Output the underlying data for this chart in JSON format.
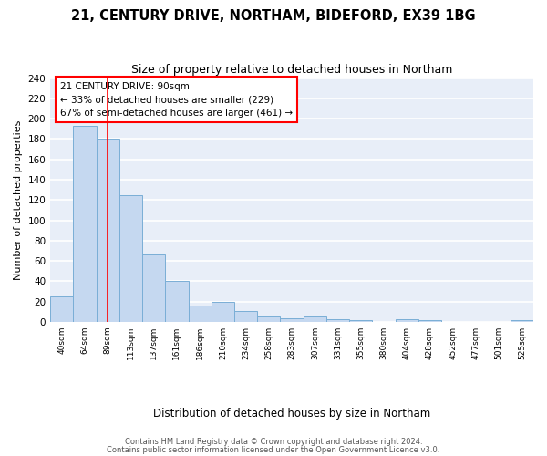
{
  "title": "21, CENTURY DRIVE, NORTHAM, BIDEFORD, EX39 1BG",
  "subtitle": "Size of property relative to detached houses in Northam",
  "xlabel": "Distribution of detached houses by size in Northam",
  "ylabel": "Number of detached properties",
  "bar_color": "#c5d8f0",
  "bar_edge_color": "#7aaed6",
  "background_color": "#e8eef8",
  "categories": [
    "40sqm",
    "64sqm",
    "89sqm",
    "113sqm",
    "137sqm",
    "161sqm",
    "186sqm",
    "210sqm",
    "234sqm",
    "258sqm",
    "283sqm",
    "307sqm",
    "331sqm",
    "355sqm",
    "380sqm",
    "404sqm",
    "428sqm",
    "452sqm",
    "477sqm",
    "501sqm",
    "525sqm"
  ],
  "values": [
    25,
    193,
    180,
    125,
    66,
    40,
    16,
    20,
    11,
    5,
    4,
    5,
    3,
    2,
    0,
    3,
    2,
    0,
    0,
    0,
    2
  ],
  "ylim": [
    0,
    240
  ],
  "yticks": [
    0,
    20,
    40,
    60,
    80,
    100,
    120,
    140,
    160,
    180,
    200,
    220,
    240
  ],
  "red_line_x": 2,
  "annotation_title": "21 CENTURY DRIVE: 90sqm",
  "annotation_line1": "← 33% of detached houses are smaller (229)",
  "annotation_line2": "67% of semi-detached houses are larger (461) →",
  "footer_line1": "Contains HM Land Registry data © Crown copyright and database right 2024.",
  "footer_line2": "Contains public sector information licensed under the Open Government Licence v3.0."
}
